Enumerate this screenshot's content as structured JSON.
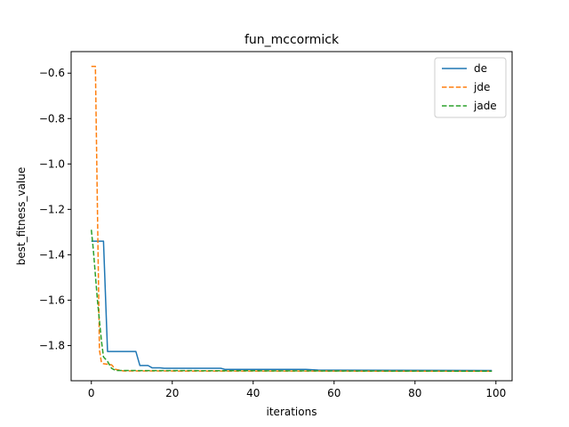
{
  "chart_data": {
    "type": "line",
    "title": "fun_mccormick",
    "xlabel": "iterations",
    "ylabel": "best_fitness_value",
    "xlim": [
      -5,
      104
    ],
    "ylim": [
      -1.955,
      -0.505
    ],
    "xticks": [
      0,
      20,
      40,
      60,
      80,
      100
    ],
    "xtick_labels": [
      "0",
      "20",
      "40",
      "60",
      "80",
      "100"
    ],
    "yticks": [
      -0.6,
      -0.8,
      -1.0,
      -1.2,
      -1.4,
      -1.6,
      -1.8
    ],
    "ytick_labels": [
      "−0.6",
      "−0.8",
      "−1.0",
      "−1.2",
      "−1.4",
      "−1.6",
      "−1.8"
    ],
    "grid": false,
    "legend_position": "top-right",
    "series": [
      {
        "name": "de",
        "color": "#1f77b4",
        "style": "solid",
        "points": [
          [
            0,
            -1.34
          ],
          [
            3,
            -1.34
          ],
          [
            4,
            -1.826
          ],
          [
            11,
            -1.826
          ],
          [
            12,
            -1.888
          ],
          [
            14,
            -1.888
          ],
          [
            15,
            -1.898
          ],
          [
            17,
            -1.898
          ],
          [
            18,
            -1.9
          ],
          [
            32,
            -1.9
          ],
          [
            33,
            -1.905
          ],
          [
            53,
            -1.905
          ],
          [
            56,
            -1.908
          ],
          [
            99,
            -1.91
          ]
        ]
      },
      {
        "name": "jde",
        "color": "#ff7f0e",
        "style": "dashed",
        "points": [
          [
            0,
            -0.57
          ],
          [
            1,
            -0.57
          ],
          [
            2,
            -1.82
          ],
          [
            2.5,
            -1.875
          ],
          [
            3,
            -1.88
          ],
          [
            5,
            -1.885
          ],
          [
            6,
            -1.905
          ],
          [
            8,
            -1.912
          ],
          [
            99,
            -1.913
          ]
        ]
      },
      {
        "name": "jade",
        "color": "#2ca02c",
        "style": "dashed",
        "points": [
          [
            0,
            -1.29
          ],
          [
            0.5,
            -1.38
          ],
          [
            1,
            -1.49
          ],
          [
            1.5,
            -1.6
          ],
          [
            2,
            -1.69
          ],
          [
            2.5,
            -1.78
          ],
          [
            3,
            -1.85
          ],
          [
            4,
            -1.87
          ],
          [
            5,
            -1.9
          ],
          [
            6,
            -1.91
          ],
          [
            99,
            -1.913
          ]
        ]
      }
    ]
  }
}
